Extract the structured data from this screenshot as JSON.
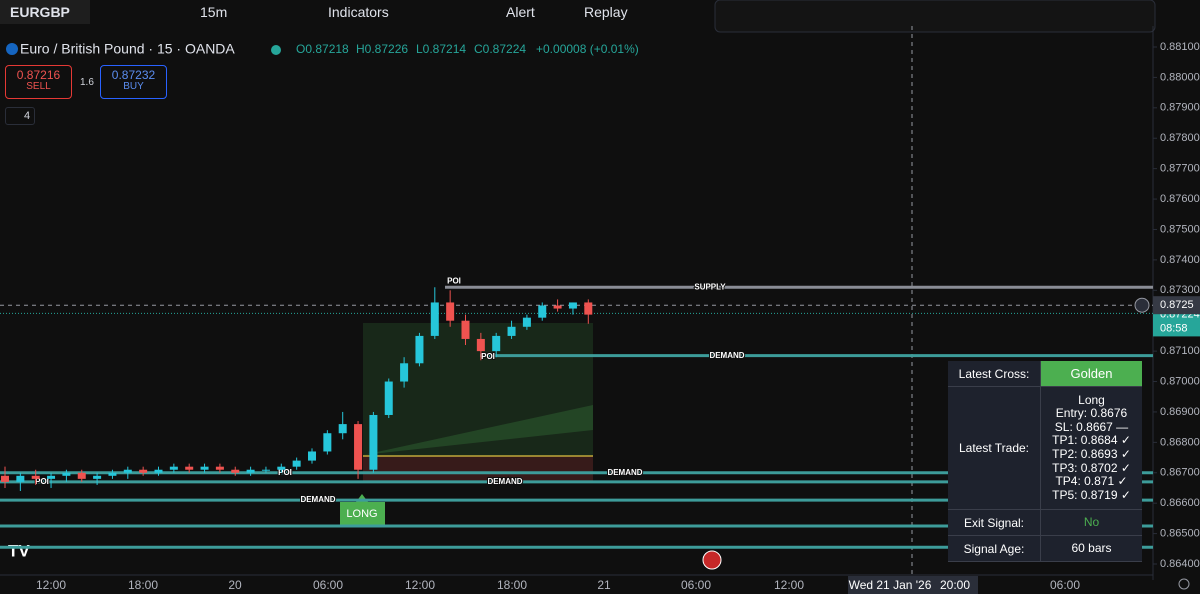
{
  "toolbar": {
    "symbol": "EURGBP",
    "interval": "15m",
    "indicators": "Indicators",
    "alert": "Alert",
    "replay": "Replay"
  },
  "legend": {
    "title": "Euro / British Pound · 15 · OANDA",
    "ohlc": [
      "O0.87218",
      "H0.87226",
      "L0.87214",
      "C0.87224",
      "+0.00008 (+0.01%)"
    ]
  },
  "trade_buttons": {
    "sell_price": "0.87216",
    "sell_label": "SELL",
    "spread": "1.6",
    "buy_price": "0.87232",
    "buy_label": "BUY",
    "indicator_count": "4"
  },
  "price_axis": {
    "ticks": [
      {
        "value": 0.881,
        "label": "0.88100"
      },
      {
        "value": 0.88,
        "label": "0.88000"
      },
      {
        "value": 0.879,
        "label": "0.87900"
      },
      {
        "value": 0.878,
        "label": "0.87800"
      },
      {
        "value": 0.877,
        "label": "0.87700"
      },
      {
        "value": 0.876,
        "label": "0.87600"
      },
      {
        "value": 0.875,
        "label": "0.87500"
      },
      {
        "value": 0.874,
        "label": "0.87400"
      },
      {
        "value": 0.873,
        "label": "0.87300"
      },
      {
        "value": 0.871,
        "label": "0.87100"
      },
      {
        "value": 0.87,
        "label": "0.87000"
      },
      {
        "value": 0.869,
        "label": "0.86900"
      },
      {
        "value": 0.868,
        "label": "0.86800"
      },
      {
        "value": 0.867,
        "label": "0.86700"
      },
      {
        "value": 0.866,
        "label": "0.86600"
      },
      {
        "value": 0.865,
        "label": "0.86500"
      },
      {
        "value": 0.864,
        "label": "0.86400"
      }
    ],
    "crosshair": {
      "value": 0.87251,
      "label": "0.8725"
    },
    "last": {
      "value": 0.87224,
      "label": "0.87224"
    },
    "countdown": "08:58"
  },
  "time_axis": {
    "labels": [
      "12:00",
      "18:00",
      "20",
      "06:00",
      "12:00",
      "18:00",
      "21",
      "06:00",
      "12:00",
      "Wed 21 Jan '26",
      "20:00",
      "06:00"
    ]
  },
  "chart": {
    "candles": [
      [
        0.8669,
        0.8672,
        0.8665,
        0.8667
      ],
      [
        0.8667,
        0.867,
        0.8664,
        0.8669
      ],
      [
        0.8669,
        0.8671,
        0.8666,
        0.8668
      ],
      [
        0.8668,
        0.867,
        0.8665,
        0.8669
      ],
      [
        0.8669,
        0.8671,
        0.8667,
        0.867
      ],
      [
        0.867,
        0.8671,
        0.8667,
        0.8668
      ],
      [
        0.8668,
        0.867,
        0.8666,
        0.8669
      ],
      [
        0.8669,
        0.8671,
        0.8668,
        0.867
      ],
      [
        0.867,
        0.8672,
        0.8668,
        0.8671
      ],
      [
        0.8671,
        0.8672,
        0.8669,
        0.867
      ],
      [
        0.867,
        0.8672,
        0.8669,
        0.8671
      ],
      [
        0.8671,
        0.8673,
        0.867,
        0.8672
      ],
      [
        0.8672,
        0.8673,
        0.867,
        0.8671
      ],
      [
        0.8671,
        0.8673,
        0.867,
        0.8672
      ],
      [
        0.8672,
        0.8673,
        0.867,
        0.8671
      ],
      [
        0.8671,
        0.8672,
        0.8669,
        0.867
      ],
      [
        0.867,
        0.8672,
        0.8669,
        0.8671
      ],
      [
        0.8671,
        0.8672,
        0.867,
        0.8671
      ],
      [
        0.8671,
        0.8673,
        0.867,
        0.8672
      ],
      [
        0.8672,
        0.8675,
        0.8671,
        0.8674
      ],
      [
        0.8674,
        0.8678,
        0.8673,
        0.8677
      ],
      [
        0.8677,
        0.8684,
        0.8676,
        0.8683
      ],
      [
        0.8683,
        0.869,
        0.8681,
        0.8686
      ],
      [
        0.8686,
        0.8687,
        0.8668,
        0.8671
      ],
      [
        0.8671,
        0.869,
        0.867,
        0.8689
      ],
      [
        0.8689,
        0.8701,
        0.8688,
        0.87
      ],
      [
        0.87,
        0.8708,
        0.8698,
        0.8706
      ],
      [
        0.8706,
        0.8716,
        0.8705,
        0.8715
      ],
      [
        0.8715,
        0.8731,
        0.8714,
        0.8726
      ],
      [
        0.8726,
        0.873,
        0.8718,
        0.872
      ],
      [
        0.872,
        0.8722,
        0.8712,
        0.8714
      ],
      [
        0.8714,
        0.8716,
        0.8707,
        0.871
      ],
      [
        0.871,
        0.8716,
        0.8708,
        0.8715
      ],
      [
        0.8715,
        0.872,
        0.8714,
        0.8718
      ],
      [
        0.8718,
        0.8722,
        0.8717,
        0.8721
      ],
      [
        0.8721,
        0.8726,
        0.872,
        0.8725
      ],
      [
        0.8725,
        0.8727,
        0.8723,
        0.8724
      ],
      [
        0.8724,
        0.8726,
        0.8722,
        0.8726
      ],
      [
        0.8726,
        0.8727,
        0.8719,
        0.8722
      ]
    ],
    "zones": [
      {
        "label": "SUPPLY",
        "poi": "POI",
        "price": 0.8731
      },
      {
        "label": "DEMAND",
        "poi": "POI",
        "price": 0.87085
      },
      {
        "label": "DEMAND",
        "poi": "POI",
        "price": 0.867
      },
      {
        "label": "DEMAND",
        "poi": "POI",
        "price": 0.8667
      },
      {
        "label": "DEMAND",
        "price": 0.8661
      },
      {
        "price": 0.86525
      },
      {
        "price": 0.86455
      }
    ],
    "signal": "LONG"
  },
  "table": {
    "rows": [
      {
        "label": "Latest Cross:",
        "value": [
          "Golden"
        ]
      },
      {
        "label": "Latest Trade:",
        "value": [
          "Long",
          "Entry: 0.8676",
          "SL: 0.8667 —",
          "TP1: 0.8684 ✓",
          "TP2: 0.8693 ✓",
          "TP3: 0.8702 ✓",
          "TP4: 0.871 ✓",
          "TP5: 0.8719 ✓"
        ]
      },
      {
        "label": "Exit Signal:",
        "value": [
          "No"
        ]
      },
      {
        "label": "Signal Age:",
        "value": [
          "60 bars"
        ]
      }
    ]
  }
}
